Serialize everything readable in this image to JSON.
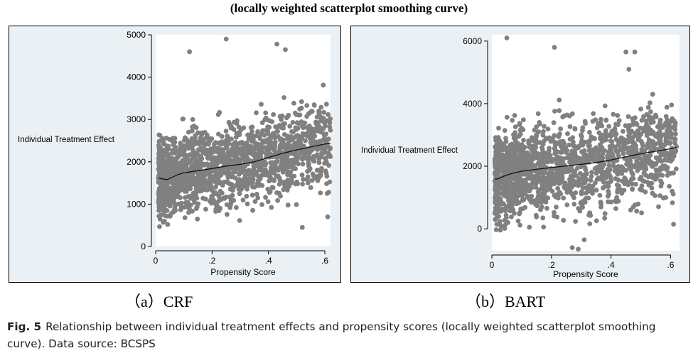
{
  "header": {
    "title": "(locally weighted scatterplot smoothing curve)"
  },
  "caption": {
    "label": "Fig. 5",
    "text": "Relationship between individual treatment effects and propensity scores (locally weighted scatterplot smoothing curve). Data source: BCSPS"
  },
  "chart_data": [
    {
      "type": "scatter",
      "subcaption": "（a）CRF",
      "xlabel": "Propensity Score",
      "ylabel": "Individual Treatment Effect",
      "xlim": [
        0,
        0.62
      ],
      "ylim": [
        0,
        5000
      ],
      "x_ticks": [
        0,
        0.2,
        0.4,
        0.6
      ],
      "x_tick_labels": [
        "0",
        ".2",
        ".4",
        ".6"
      ],
      "y_ticks": [
        0,
        1000,
        2000,
        3000,
        4000,
        5000
      ],
      "y_tick_labels": [
        "0",
        "1000",
        "2000",
        "3000",
        "4000",
        "5000"
      ],
      "point_color": "#808080",
      "line_color": "#111111",
      "grid": false,
      "seed": 7,
      "point_count": 1700,
      "x_range": [
        0.01,
        0.62
      ],
      "y_range": [
        450,
        4900
      ],
      "outliers": [
        {
          "x": 0.25,
          "y": 4900
        },
        {
          "x": 0.43,
          "y": 4780
        },
        {
          "x": 0.46,
          "y": 4650
        },
        {
          "x": 0.12,
          "y": 4600
        },
        {
          "x": 0.55,
          "y": 2650
        },
        {
          "x": 0.61,
          "y": 700
        },
        {
          "x": 0.52,
          "y": 450
        },
        {
          "x": 0.54,
          "y": 1500
        }
      ],
      "smooth_curve": {
        "x": [
          0.01,
          0.02,
          0.04,
          0.06,
          0.08,
          0.1,
          0.15,
          0.2,
          0.25,
          0.3,
          0.35,
          0.4,
          0.45,
          0.5,
          0.55,
          0.6,
          0.62
        ],
        "y": [
          1620,
          1600,
          1580,
          1640,
          1700,
          1740,
          1790,
          1840,
          1900,
          1940,
          2000,
          2100,
          2200,
          2280,
          2350,
          2420,
          2440
        ]
      }
    },
    {
      "type": "scatter",
      "subcaption": "（b）BART",
      "xlabel": "Propensity Score",
      "ylabel": "Individual Treatment Effect",
      "xlim": [
        0,
        0.63
      ],
      "ylim": [
        -700,
        6200
      ],
      "x_ticks": [
        0,
        0.2,
        0.4,
        0.6
      ],
      "x_tick_labels": [
        "0",
        ".2",
        ".4",
        ".6"
      ],
      "y_ticks": [
        0,
        2000,
        4000,
        6000
      ],
      "y_tick_labels": [
        "0",
        "2000",
        "4000",
        "6000"
      ],
      "point_color": "#808080",
      "line_color": "#111111",
      "grid": false,
      "seed": 13,
      "point_count": 1600,
      "x_range": [
        0.01,
        0.62
      ],
      "y_range": [
        -650,
        6100
      ],
      "outliers": [
        {
          "x": 0.05,
          "y": 6100
        },
        {
          "x": 0.21,
          "y": 5800
        },
        {
          "x": 0.48,
          "y": 5650
        },
        {
          "x": 0.45,
          "y": 5650
        },
        {
          "x": 0.46,
          "y": 5100
        },
        {
          "x": 0.54,
          "y": 4300
        },
        {
          "x": 0.27,
          "y": -600
        },
        {
          "x": 0.29,
          "y": -650
        },
        {
          "x": 0.31,
          "y": -350
        },
        {
          "x": 0.61,
          "y": 150
        },
        {
          "x": 0.58,
          "y": 2200
        }
      ],
      "smooth_curve": {
        "x": [
          0.01,
          0.02,
          0.04,
          0.06,
          0.08,
          0.1,
          0.15,
          0.2,
          0.25,
          0.3,
          0.35,
          0.4,
          0.45,
          0.5,
          0.55,
          0.6,
          0.62
        ],
        "y": [
          1580,
          1600,
          1680,
          1750,
          1800,
          1840,
          1900,
          1960,
          2010,
          2060,
          2120,
          2200,
          2300,
          2400,
          2480,
          2560,
          2600
        ]
      }
    }
  ]
}
